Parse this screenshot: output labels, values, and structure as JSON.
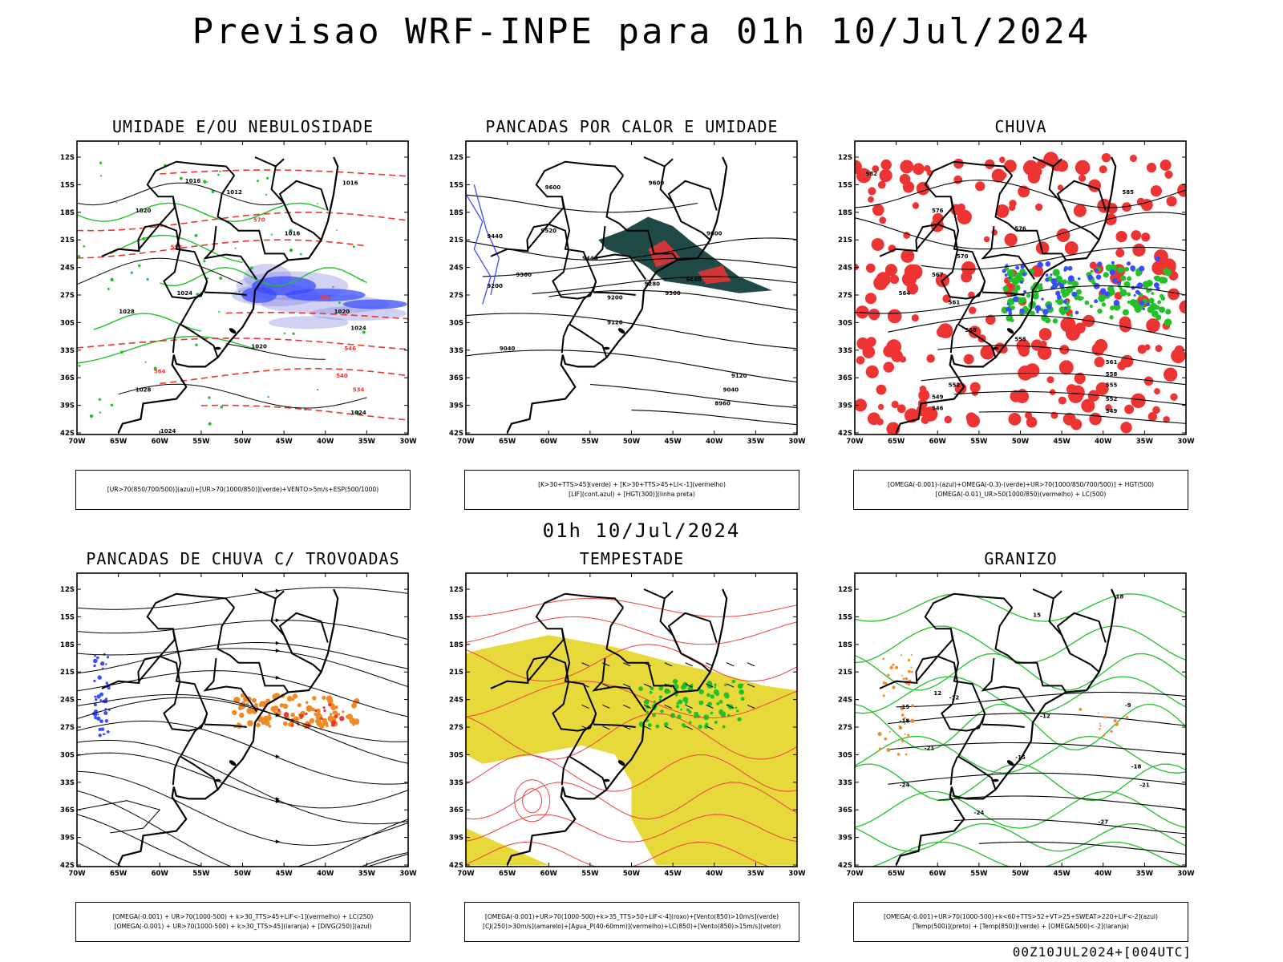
{
  "title": "Previsao WRF-INPE  para 01h 10/Jul/2024",
  "subtitle": "01h 10/Jul/2024",
  "footer": "00Z10JUL2024+[004UTC]",
  "axes": {
    "lat_labels": [
      "12S",
      "15S",
      "18S",
      "21S",
      "24S",
      "27S",
      "30S",
      "33S",
      "36S",
      "39S",
      "42S"
    ],
    "lon_labels": [
      "70W",
      "65W",
      "60W",
      "55W",
      "50W",
      "45W",
      "40W",
      "35W",
      "30W"
    ]
  },
  "colors": {
    "blue": "#3a4cff",
    "green": "#22c12a",
    "red": "#ee3333",
    "orange": "#f08a24",
    "dark_teal": "#1f4a48",
    "yellow": "#e7d93a",
    "purple": "#7a7ae0",
    "black": "#000000"
  },
  "panels": [
    {
      "id": "umidade",
      "title": "UMIDADE E/OU NEBULOSIDADE",
      "legend": [
        "[UR>70(850/700/500)](azul)+[UR>70(1000/850)](verde)+VENTO>5m/s+ESP(500/1000)"
      ],
      "contour_labels": [
        "1016",
        "1016",
        "1012",
        "1016",
        "1020",
        "1024",
        "1028",
        "1024",
        "1020",
        "1016",
        "1024",
        "1020",
        "1028",
        "1024",
        "570",
        "564",
        "558",
        "552",
        "546",
        "540",
        "534"
      ]
    },
    {
      "id": "pancadas_calor",
      "title": "PANCADAS POR CALOR E UMIDADE",
      "legend": [
        "[K>30+TTS>45](verde) + [K>30+TTS>45+LI<-1](vermelho)",
        "[LIF](cont.azul) + [HGT(300)](linha preta)"
      ],
      "contour_labels": [
        "9600",
        "9600",
        "9520",
        "9440",
        "9440",
        "9360",
        "9280",
        "9200",
        "9200",
        "9120",
        "9040",
        "9600",
        "9440",
        "9360",
        "9120",
        "9040",
        "8960"
      ]
    },
    {
      "id": "chuva",
      "title": "CHUVA",
      "legend": [
        "[OMEGA(-0.001)-(azul)+OMEGA(-0.3)-(verde)+UR>70(1000/850/700/500)] + HGT(500)",
        "[OMEGA(-0.01)_UR>50(1000/850)(vermelho) + LC(500)"
      ],
      "contour_labels": [
        "582",
        "576",
        "576",
        "570",
        "567",
        "564",
        "561",
        "558",
        "555",
        "552",
        "549",
        "546",
        "585",
        "561",
        "558",
        "555",
        "552",
        "549"
      ]
    },
    {
      "id": "pancadas_trovoadas",
      "title": "PANCADAS DE CHUVA C/ TROVOADAS",
      "legend": [
        "[OMEGA(-0.001) + UR>70(1000-500) + k>30_TTS>45+LIF<-1](vermelho) + LC(250)",
        "[OMEGA(-0.001) + UR>70(1000-500) + k>30_TTS>45](laranja) + [DIVG(250)](azul)"
      ],
      "contour_labels": []
    },
    {
      "id": "tempestade",
      "title": "TEMPESTADE",
      "legend": [
        "[OMEGA(-0.001)+UR>70(1000-500)+k>35_TTS>50+LIF<-4](roxo)+[Vento(850)>10m/s](verde)",
        "[CJ(250)>30m/s](amarelo)+[Agua_P(40-60mm)](vermelho)+LC(850)+[Vento(850)>15m/s](vetor)"
      ],
      "contour_labels": []
    },
    {
      "id": "granizo",
      "title": "GRANIZO",
      "legend": [
        "[OMEGA(-0.001)+UR>70(1000-500)+k<60+TTS>52+VT>25+SWEAT>220+LIF<-2](azul)",
        "[Temp(500)](preto) + [Temp(850)](verde) + [OMEGA(500)<-2](laranja)"
      ],
      "contour_labels": [
        "-15",
        "-18",
        "-21",
        "-24",
        "-12",
        "-9",
        "-15",
        "-18",
        "-21",
        "-24",
        "-27",
        "-12",
        "18",
        "15",
        "12"
      ]
    }
  ]
}
